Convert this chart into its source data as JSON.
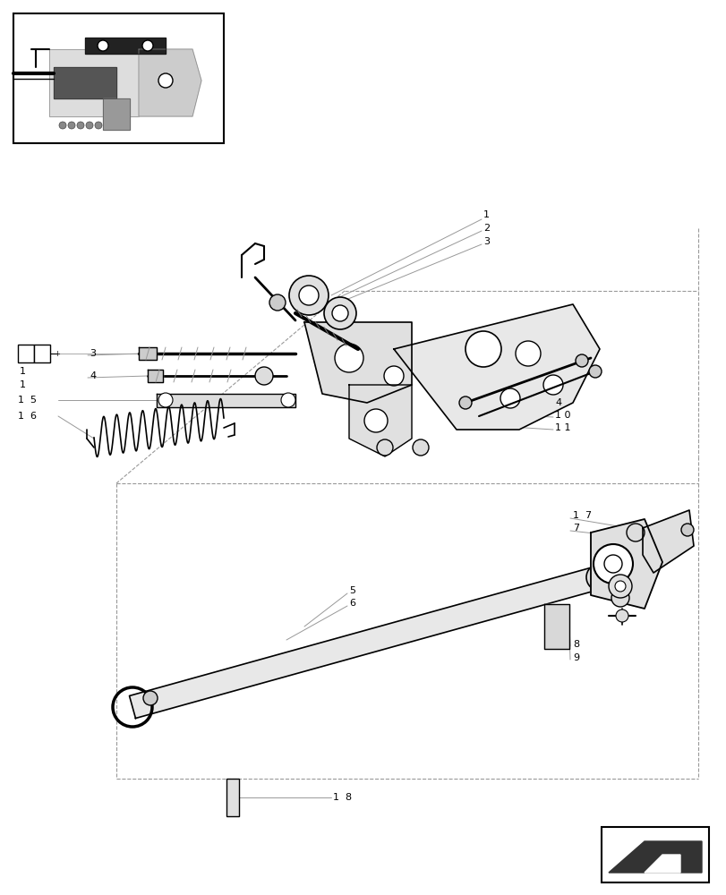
{
  "bg_color": "#ffffff",
  "lc": "#000000",
  "dc": "#999999",
  "fig_width": 8.12,
  "fig_height": 10.0,
  "dpi": 100
}
